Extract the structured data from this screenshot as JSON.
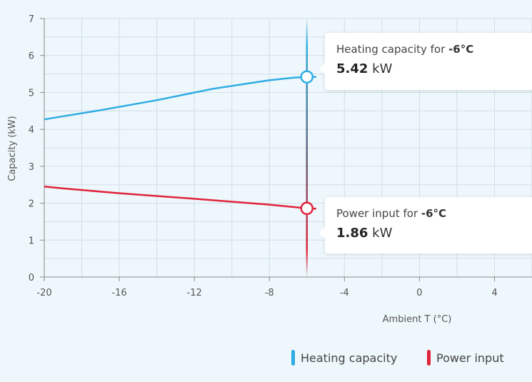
{
  "chart_data": {
    "type": "line",
    "xlabel": "Ambient T (°C)",
    "ylabel": "Capacity (kW)",
    "xlim": [
      -20,
      6
    ],
    "ylim": [
      0,
      7
    ],
    "x_ticks": [
      -20,
      -16,
      -12,
      -8,
      -4,
      0,
      4
    ],
    "y_ticks": [
      0,
      1,
      2,
      3,
      4,
      5,
      6,
      7
    ],
    "grid": true,
    "legend_position": "bottom-right",
    "series": [
      {
        "name": "Heating capacity",
        "color": "#2eace2",
        "x": [
          -20,
          -17,
          -14,
          -11,
          -8,
          -6.7,
          -6,
          -5.5
        ],
        "y": [
          4.27,
          4.52,
          4.79,
          5.1,
          5.33,
          5.4,
          5.42,
          5.42
        ]
      },
      {
        "name": "Power input",
        "color": "#e0233b",
        "x": [
          -20,
          -19,
          -16,
          -12,
          -8,
          -6,
          -5.5
        ],
        "y": [
          2.45,
          2.4,
          2.27,
          2.12,
          1.96,
          1.86,
          1.85
        ]
      }
    ],
    "crosshair_x": -6,
    "tooltips": [
      {
        "title_prefix": "Heating capacity for",
        "x_label": "-6°C",
        "value": "5.42",
        "unit": "kW",
        "y": 5.42
      },
      {
        "title_prefix": "Power input for",
        "x_label": "-6°C",
        "value": "1.86",
        "unit": "kW",
        "y": 1.86
      }
    ]
  }
}
